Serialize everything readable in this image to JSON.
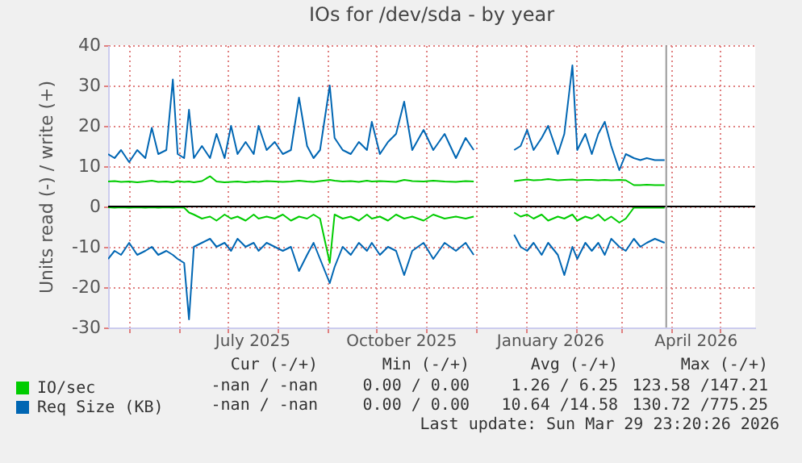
{
  "chart_data": {
    "type": "line",
    "title": "IOs for /dev/sda - by year",
    "ylabel": "Units read (-) / write (+)",
    "x": [
      "2025-04-18",
      "2025-04-22",
      "2025-04-26",
      "2025-05-01",
      "2025-05-06",
      "2025-05-11",
      "2025-05-15",
      "2025-05-19",
      "2025-05-24",
      "2025-05-28",
      "2025-05-31",
      "2025-06-04",
      "2025-06-07",
      "2025-06-10",
      "2025-06-15",
      "2025-06-20",
      "2025-06-24",
      "2025-06-29",
      "2025-07-03",
      "2025-07-07",
      "2025-07-12",
      "2025-07-17",
      "2025-07-20",
      "2025-07-25",
      "2025-07-30",
      "2025-08-04",
      "2025-08-09",
      "2025-08-14",
      "2025-08-19",
      "2025-08-23",
      "2025-08-27",
      "2025-09-02",
      "2025-09-05",
      "2025-09-10",
      "2025-09-15",
      "2025-09-20",
      "2025-09-25",
      "2025-09-28",
      "2025-10-03",
      "2025-10-08",
      "2025-10-13",
      "2025-10-18",
      "2025-10-23",
      "2025-10-30",
      "2025-11-05",
      "2025-11-12",
      "2025-11-19",
      "2025-11-25",
      "2025-11-30",
      "2025-12-12",
      "2025-12-25",
      "2025-12-29",
      "2026-01-02",
      "2026-01-06",
      "2026-01-11",
      "2026-01-15",
      "2026-01-21",
      "2026-01-25",
      "2026-01-30",
      "2026-02-02",
      "2026-02-07",
      "2026-02-11",
      "2026-02-15",
      "2026-02-19",
      "2026-02-23",
      "2026-02-28",
      "2026-03-04",
      "2026-03-09",
      "2026-03-13",
      "2026-03-17",
      "2026-03-22",
      "2026-03-28"
    ],
    "series": [
      {
        "name": "IO/sec",
        "color": "#00cc00",
        "values": [
          6.2,
          6.3,
          6.1,
          6.2,
          6.0,
          6.2,
          6.4,
          6.1,
          6.2,
          6.0,
          6.3,
          6.1,
          6.2,
          6.0,
          6.3,
          7.5,
          6.2,
          6.0,
          6.1,
          6.2,
          6.0,
          6.2,
          6.1,
          6.3,
          6.2,
          6.1,
          6.2,
          6.4,
          6.2,
          6.1,
          6.3,
          6.6,
          6.4,
          6.2,
          6.3,
          6.1,
          6.4,
          6.2,
          6.3,
          6.2,
          6.1,
          6.6,
          6.3,
          6.2,
          6.4,
          6.2,
          6.1,
          6.3,
          6.2,
          null,
          6.3,
          6.5,
          6.7,
          6.5,
          6.6,
          6.8,
          6.5,
          6.6,
          6.7,
          6.5,
          6.6,
          6.6,
          6.5,
          6.6,
          6.5,
          6.6,
          6.5,
          5.3,
          5.3,
          5.4,
          5.3,
          5.3
        ]
      },
      {
        "color": "#00cc00",
        "values": [
          -0.2,
          -0.3,
          -0.2,
          -0.3,
          -0.2,
          -0.3,
          -0.2,
          -0.3,
          -0.2,
          -0.3,
          -0.2,
          -0.3,
          -1.5,
          -2,
          -3,
          -2.5,
          -3.5,
          -2,
          -3,
          -2.5,
          -3.5,
          -2,
          -3,
          -2.5,
          -3,
          -2,
          -3.5,
          -2.5,
          -3,
          -2,
          -3,
          -14,
          -2,
          -3,
          -2.5,
          -3.5,
          -2,
          -3,
          -2.5,
          -3.5,
          -2,
          -3,
          -2.5,
          -3.5,
          -2,
          -3,
          -2.5,
          -3,
          -2.5,
          null,
          -1.5,
          -2.5,
          -2,
          -3,
          -2,
          -3.5,
          -2.5,
          -3,
          -2,
          -3.5,
          -2.5,
          -3,
          -2,
          -3.5,
          -2.5,
          -4,
          -3,
          -0.3,
          -0.3,
          -0.3,
          -0.3,
          -0.3
        ]
      },
      {
        "name": "Req Size (KB)",
        "color": "#0066b3",
        "values": [
          13,
          12,
          14,
          11,
          14,
          12,
          19.5,
          13,
          14,
          31.5,
          13,
          12,
          24,
          12,
          15,
          12,
          18,
          12,
          20,
          13,
          16,
          13,
          20,
          14,
          16,
          13,
          14,
          27,
          15,
          12,
          14,
          30,
          17,
          14,
          13,
          16,
          14,
          21,
          13,
          16,
          18,
          26,
          14,
          19,
          14,
          18,
          12,
          17,
          14,
          null,
          14,
          15,
          19,
          14,
          17,
          20,
          13,
          18,
          35,
          14,
          18,
          13,
          18,
          21,
          15,
          9,
          13,
          12,
          11.5,
          12,
          11.5,
          11.5
        ]
      },
      {
        "color": "#0066b3",
        "values": [
          -13,
          -11,
          -12,
          -9,
          -12,
          -11,
          -10,
          -12,
          -11,
          -12,
          -13,
          -14,
          -28,
          -10,
          -9,
          -8,
          -10,
          -9,
          -11,
          -8,
          -10,
          -9,
          -11,
          -9,
          -10,
          -11,
          -10,
          -16,
          -12,
          -9,
          -13,
          -19,
          -15,
          -10,
          -12,
          -9,
          -11,
          -9,
          -12,
          -10,
          -11,
          -17,
          -11,
          -9,
          -13,
          -9,
          -11,
          -9,
          -12,
          null,
          -7,
          -10,
          -11,
          -9,
          -12,
          -9,
          -12,
          -17,
          -10,
          -13,
          -9,
          -11,
          -9,
          -12,
          -8,
          -10,
          -11,
          -8,
          -10,
          -9,
          -8,
          -9
        ]
      }
    ],
    "xlim": [
      "2025-04-18",
      "2026-05-23"
    ],
    "xticks": [
      {
        "value": "2025-05-01",
        "label": null
      },
      {
        "value": "2025-06-01",
        "label": null
      },
      {
        "value": "2025-07-01",
        "label": null
      },
      {
        "value": "2025-07-16",
        "label": "July 2025"
      },
      {
        "value": "2025-08-01",
        "label": null
      },
      {
        "value": "2025-09-01",
        "label": null
      },
      {
        "value": "2025-10-01",
        "label": null
      },
      {
        "value": "2025-10-16",
        "label": "October 2025"
      },
      {
        "value": "2025-11-01",
        "label": null
      },
      {
        "value": "2025-12-01",
        "label": null
      },
      {
        "value": "2026-01-01",
        "label": null
      },
      {
        "value": "2026-01-16",
        "label": "January 2026"
      },
      {
        "value": "2026-02-01",
        "label": null
      },
      {
        "value": "2026-03-01",
        "label": null
      },
      {
        "value": "2026-04-01",
        "label": null
      },
      {
        "value": "2026-04-16",
        "label": "April 2026"
      },
      {
        "value": "2026-05-01",
        "label": null
      }
    ],
    "ylim": [
      -30,
      40
    ],
    "yticks": [
      -30,
      -20,
      -10,
      0,
      10,
      20,
      30,
      40
    ],
    "grid": true,
    "legend": "bottom left",
    "ref_lines": [
      {
        "axis": "y",
        "value": 0,
        "color": "#000000"
      },
      {
        "axis": "x",
        "value": "2026-03-29",
        "color": "#999999"
      }
    ],
    "annotations": [
      "Cur (-/+)",
      "Min (-/+)",
      "Avg (-/+)",
      "Max (-/+)",
      "-nan / -nan",
      "0.00 / 0.00",
      "1.26 / 6.25",
      "123.58 /147.21",
      "-nan / -nan",
      "0.00 / 0.00",
      "10.64 /14.58",
      "130.72 /775.25",
      "Last update: Sun Mar 29 23:20:26 2026"
    ]
  }
}
